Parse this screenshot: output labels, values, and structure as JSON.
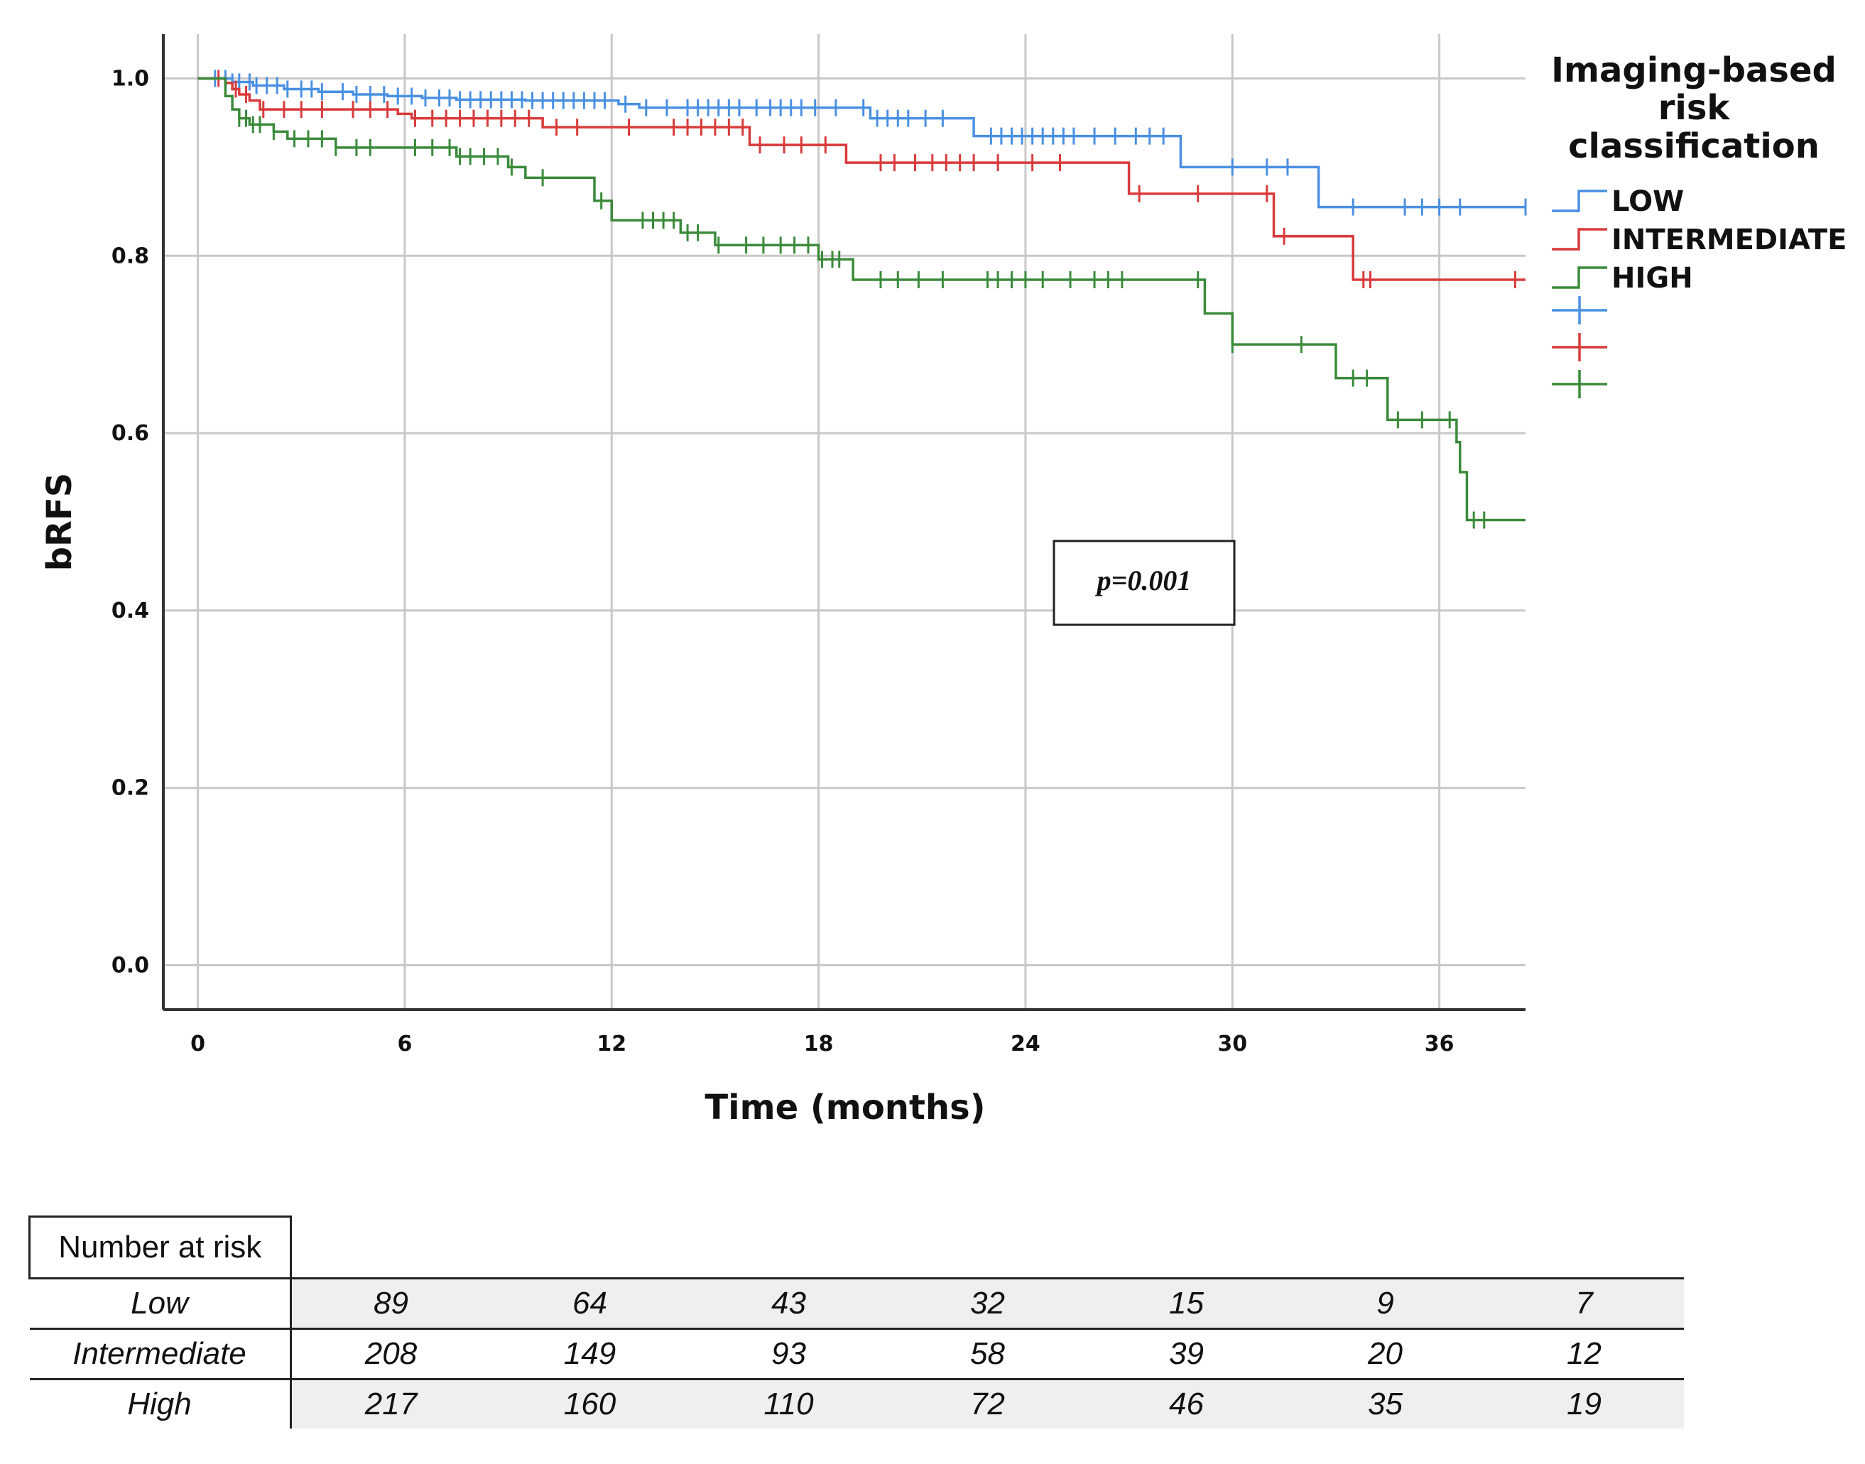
{
  "chart_data": {
    "type": "line",
    "subtype": "kaplan-meier",
    "title": "",
    "xlabel": "Time (months)",
    "ylabel": "bRFS",
    "xlim": [
      -1,
      38.5
    ],
    "ylim": [
      -0.05,
      1.05
    ],
    "xticks": [
      0,
      6,
      12,
      18,
      24,
      30,
      36
    ],
    "yticks": [
      0.0,
      0.2,
      0.4,
      0.6,
      0.8,
      1.0
    ],
    "ytick_labels": [
      "0.0",
      "0.2",
      "0.4",
      "0.6",
      "0.8",
      "1.0"
    ],
    "grid": true,
    "legend_title_lines": [
      "Imaging-based",
      "risk",
      "classification"
    ],
    "legend_position": "top-right",
    "annotation": "p=0.001",
    "series": [
      {
        "name": "LOW",
        "color": "#4a90e2",
        "steps": [
          [
            0,
            1.0
          ],
          [
            1.0,
            0.996
          ],
          [
            1.6,
            0.992
          ],
          [
            2.5,
            0.988
          ],
          [
            3.5,
            0.985
          ],
          [
            4.5,
            0.982
          ],
          [
            5.5,
            0.98
          ],
          [
            6.5,
            0.978
          ],
          [
            7.5,
            0.976
          ],
          [
            9.5,
            0.975
          ],
          [
            12.2,
            0.971
          ],
          [
            12.8,
            0.967
          ],
          [
            19.5,
            0.955
          ],
          [
            22.5,
            0.935
          ],
          [
            28.5,
            0.9
          ],
          [
            32.5,
            0.855
          ],
          [
            38.5,
            0.855
          ]
        ],
        "censors": [
          0.5,
          0.8,
          1.0,
          1.2,
          1.5,
          1.7,
          2.0,
          2.3,
          2.6,
          3.0,
          3.3,
          3.6,
          4.2,
          4.6,
          5.0,
          5.4,
          5.8,
          6.2,
          6.6,
          7.0,
          7.3,
          7.6,
          7.9,
          8.2,
          8.5,
          8.8,
          9.1,
          9.4,
          9.7,
          10.0,
          10.3,
          10.6,
          10.9,
          11.2,
          11.5,
          11.8,
          12.4,
          13.0,
          13.6,
          14.2,
          14.5,
          14.8,
          15.1,
          15.4,
          15.7,
          16.2,
          16.6,
          16.9,
          17.2,
          17.5,
          17.9,
          18.5,
          19.3,
          19.7,
          20.0,
          20.3,
          20.6,
          21.1,
          21.6,
          23.0,
          23.3,
          23.6,
          23.9,
          24.2,
          24.5,
          24.8,
          25.1,
          25.4,
          26.0,
          26.6,
          27.2,
          27.6,
          28.0,
          30.0,
          31.0,
          31.6,
          33.5,
          35.0,
          35.5,
          36.0,
          36.6,
          38.5
        ]
      },
      {
        "name": "INTERMEDIATE",
        "color": "#d93a3a",
        "steps": [
          [
            0,
            1.0
          ],
          [
            0.8,
            0.995
          ],
          [
            1.0,
            0.988
          ],
          [
            1.2,
            0.982
          ],
          [
            1.5,
            0.975
          ],
          [
            1.8,
            0.965
          ],
          [
            5.8,
            0.96
          ],
          [
            6.2,
            0.955
          ],
          [
            10.0,
            0.945
          ],
          [
            16.0,
            0.925
          ],
          [
            18.8,
            0.905
          ],
          [
            27.0,
            0.87
          ],
          [
            31.2,
            0.822
          ],
          [
            33.5,
            0.773
          ],
          [
            38.5,
            0.773
          ]
        ],
        "censors": [
          0.6,
          1.1,
          1.4,
          1.9,
          2.5,
          3.0,
          3.6,
          4.5,
          5.0,
          5.5,
          6.3,
          6.8,
          7.2,
          7.6,
          8.0,
          8.4,
          8.8,
          9.2,
          9.6,
          10.4,
          11.0,
          12.5,
          13.8,
          14.2,
          14.6,
          15.0,
          15.4,
          15.8,
          16.3,
          17.0,
          17.5,
          18.2,
          19.8,
          20.2,
          20.8,
          21.3,
          21.7,
          22.1,
          22.5,
          23.2,
          24.2,
          25.0,
          27.3,
          29.0,
          31.0,
          31.5,
          33.8,
          34.0,
          38.2
        ]
      },
      {
        "name": "HIGH",
        "color": "#3a8a3a",
        "steps": [
          [
            0,
            1.0
          ],
          [
            0.8,
            0.98
          ],
          [
            1.0,
            0.965
          ],
          [
            1.2,
            0.955
          ],
          [
            1.5,
            0.948
          ],
          [
            2.2,
            0.94
          ],
          [
            2.6,
            0.932
          ],
          [
            4.0,
            0.922
          ],
          [
            7.5,
            0.912
          ],
          [
            9.0,
            0.9
          ],
          [
            9.5,
            0.888
          ],
          [
            11.5,
            0.862
          ],
          [
            12.0,
            0.84
          ],
          [
            14.0,
            0.826
          ],
          [
            15.0,
            0.812
          ],
          [
            18.0,
            0.796
          ],
          [
            19.0,
            0.773
          ],
          [
            29.2,
            0.735
          ],
          [
            30.0,
            0.7
          ],
          [
            33.0,
            0.662
          ],
          [
            34.5,
            0.615
          ],
          [
            36.5,
            0.59
          ],
          [
            36.6,
            0.556
          ],
          [
            36.8,
            0.502
          ],
          [
            38.5,
            0.502
          ]
        ],
        "censors": [
          1.2,
          1.4,
          1.6,
          1.8,
          2.2,
          2.8,
          3.2,
          3.6,
          4.0,
          4.6,
          5.0,
          6.3,
          6.8,
          7.3,
          7.6,
          7.9,
          8.3,
          8.7,
          9.1,
          10.0,
          11.7,
          12.9,
          13.2,
          13.5,
          13.8,
          14.2,
          14.5,
          15.1,
          15.9,
          16.4,
          16.9,
          17.3,
          17.7,
          18.1,
          18.4,
          18.6,
          19.8,
          20.3,
          20.9,
          21.6,
          22.9,
          23.2,
          23.6,
          24.0,
          24.5,
          25.3,
          26.0,
          26.4,
          26.8,
          29.0,
          30.0,
          32.0,
          33.5,
          33.9,
          34.8,
          35.5,
          36.3,
          37.0,
          37.3
        ]
      }
    ]
  },
  "legend": {
    "entries": [
      {
        "label": "LOW",
        "color": "#4a90e2"
      },
      {
        "label": "INTERMEDIATE",
        "color": "#d93a3a"
      },
      {
        "label": "HIGH",
        "color": "#3a8a3a"
      }
    ],
    "censor_entries": [
      {
        "color": "#4a90e2"
      },
      {
        "color": "#d93a3a"
      },
      {
        "color": "#3a8a3a"
      }
    ]
  },
  "risk_table": {
    "header": "Number at risk",
    "rows": [
      {
        "label": "Low",
        "values": [
          "89",
          "64",
          "43",
          "32",
          "15",
          "9",
          "7"
        ]
      },
      {
        "label": "Intermediate",
        "values": [
          "208",
          "149",
          "93",
          "58",
          "39",
          "20",
          "12"
        ]
      },
      {
        "label": "High",
        "values": [
          "217",
          "160",
          "110",
          "72",
          "46",
          "35",
          "19"
        ]
      }
    ]
  }
}
